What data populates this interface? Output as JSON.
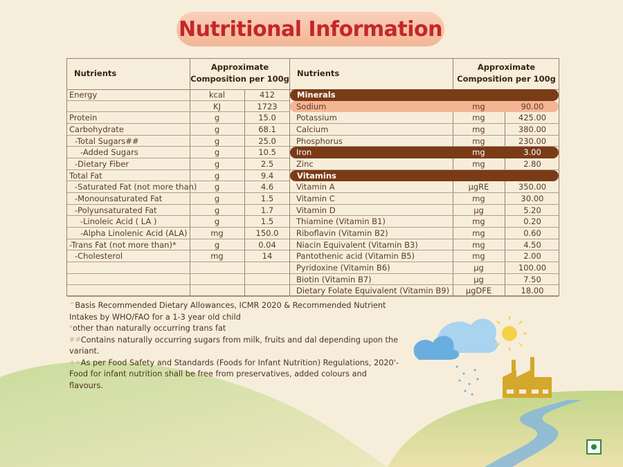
{
  "title": "Nutritional Information",
  "left_table": {
    "headers": [
      "Nutrients",
      "Approximate Composition per 100g"
    ],
    "rows": [
      {
        "name": "Energy",
        "unit": "kcal",
        "value": "412"
      },
      {
        "unit": "KJ",
        "value": "1723"
      },
      {
        "name": "Protein",
        "unit": "g",
        "value": "15.0"
      },
      {
        "name": "Carbohydrate",
        "unit": "g",
        "value": "68.1"
      },
      {
        "name": "-Total Sugars##",
        "unit": "g",
        "value": "25.0"
      },
      {
        "name": "-Added Sugars",
        "unit": "g",
        "value": "10.5"
      },
      {
        "name": "-Dietary Fiber",
        "unit": "g",
        "value": "2.5"
      },
      {
        "name": "Total Fat",
        "unit": "g",
        "value": "9.4"
      },
      {
        "name": "-Saturated Fat (not more than)",
        "unit": "g",
        "value": "4.6"
      },
      {
        "name": "-Monounsaturated Fat",
        "unit": "g",
        "value": "1.5"
      },
      {
        "name": "-Polyunsaturated Fat",
        "unit": "g",
        "value": "1.7"
      },
      {
        "name": "-Linoleic Acid ( LA )",
        "unit": "g",
        "value": "1.5"
      },
      {
        "name": "-Alpha Linolenic Acid (ALA)",
        "unit": "mg",
        "value": "150.0"
      },
      {
        "name": "-Trans Fat (not more than)*",
        "unit": "g",
        "value": "0.04"
      },
      {
        "name": "-Cholesterol",
        "unit": "mg",
        "value": "14"
      }
    ]
  },
  "right_table": {
    "headers": [
      "Nutrients",
      "Approximate Composition per 100g"
    ],
    "sections": [
      {
        "title": "Minerals",
        "rows": [
          {
            "name": "Sodium",
            "unit": "mg",
            "value": "90.00"
          },
          {
            "name": "Potassium",
            "unit": "mg",
            "value": "425.00"
          },
          {
            "name": "Calcium",
            "unit": "mg",
            "value": "380.00"
          },
          {
            "name": "Phosphorus",
            "unit": "mg",
            "value": "230.00"
          },
          {
            "name": "Iron",
            "unit": "mg",
            "value": "3.00"
          },
          {
            "name": "Zinc",
            "unit": "mg",
            "value": "2.80"
          }
        ]
      },
      {
        "title": "Vitamins",
        "rows": [
          {
            "name": "Vitamin A",
            "unit": "µgRE",
            "value": "350.00"
          },
          {
            "name": "Vitamin C",
            "unit": "mg",
            "value": "30.00"
          },
          {
            "name": "Vitamin D",
            "unit": "µg",
            "value": "5.20"
          },
          {
            "name": "Thiamine (Vitamin B1)",
            "unit": "mg",
            "value": "0.20"
          },
          {
            "name": "Riboflavin (Vitamin B2)",
            "unit": "mg",
            "value": "0.60"
          },
          {
            "name": "Niacin Equivalent (Vitamin B3)",
            "unit": "mg",
            "value": "4.50"
          },
          {
            "name": "Pantothenic acid (Vitamin B5)",
            "unit": "mg",
            "value": "2.00"
          },
          {
            "name": "Pyridoxine (Vitamin B6)",
            "unit": "µg",
            "value": "100.00"
          },
          {
            "name": "Biotin (Vitamin B7)",
            "unit": "µg",
            "value": "7.50"
          },
          {
            "name": "Dietary Folate Equivalent (Vitamin B9)",
            "unit": "µgDFE",
            "value": "18.00"
          }
        ]
      }
    ]
  },
  "footnotes": [
    {
      "mark": "^",
      "text": "Basis Recommended Dietary Allowances, ICMR 2020 & Recommended Nutrient Intakes by WHO/FAO for a 1-3 year old child"
    },
    {
      "mark": "*",
      "text": "other than naturally occurring trans fat"
    },
    {
      "mark": "##",
      "text": "Contains naturally occurring sugars from milk, fruits and dal depending upon the variant."
    },
    {
      "mark": "++",
      "text": "As per Food Safety and Standards (Foods for Infant Nutrition) Regulations, 2020'- Food for infant nutrition   shall be free from preservatives, added colours and flavours."
    }
  ]
}
